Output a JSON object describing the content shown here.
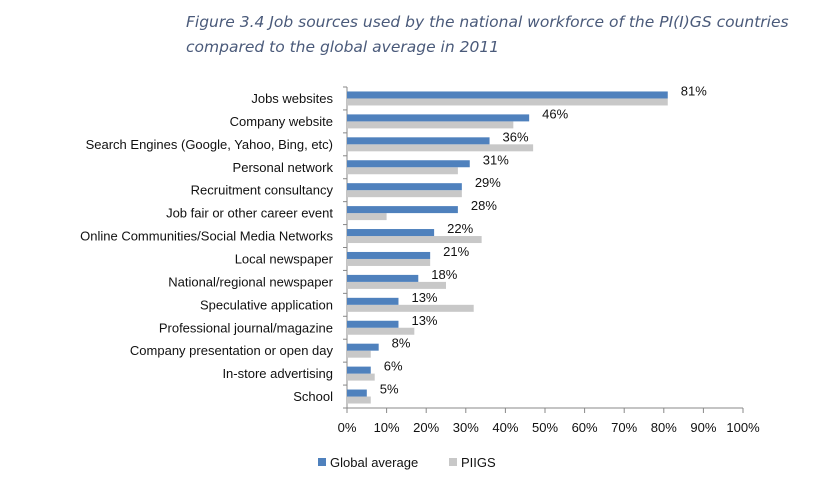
{
  "caption": {
    "line1": "Figure 3.4 Job sources used by the national workforce of the PI(I)GS countries",
    "line2": "compared to the global average in 2011"
  },
  "chart_data": {
    "type": "bar",
    "orientation": "horizontal",
    "categories": [
      "Jobs websites",
      "Company website",
      "Search Engines (Google, Yahoo, Bing, etc)",
      "Personal network",
      "Recruitment consultancy",
      "Job fair or other career event",
      "Online Communities/Social Media Networks",
      "Local newspaper",
      "National/regional newspaper",
      "Speculative application",
      "Professional journal/magazine",
      "Company presentation or open day",
      "In-store advertising",
      "School"
    ],
    "series": [
      {
        "name": "Global average",
        "color": "#4f81bd",
        "values": [
          81,
          46,
          36,
          31,
          29,
          28,
          22,
          21,
          18,
          13,
          13,
          8,
          6,
          5
        ],
        "labels": [
          "81%",
          "46%",
          "36%",
          "31%",
          "29%",
          "28%",
          "22%",
          "21%",
          "18%",
          "13%",
          "13%",
          "8%",
          "6%",
          "5%"
        ]
      },
      {
        "name": "PIIGS",
        "color": "#c8c8c8",
        "values": [
          81,
          42,
          47,
          28,
          29,
          10,
          34,
          21,
          25,
          32,
          17,
          6,
          7,
          6
        ]
      }
    ],
    "xlim": [
      0,
      100
    ],
    "xticks": [
      "0%",
      "10%",
      "20%",
      "30%",
      "40%",
      "50%",
      "60%",
      "70%",
      "80%",
      "90%",
      "100%"
    ],
    "grid": false,
    "legend_position": "bottom"
  }
}
